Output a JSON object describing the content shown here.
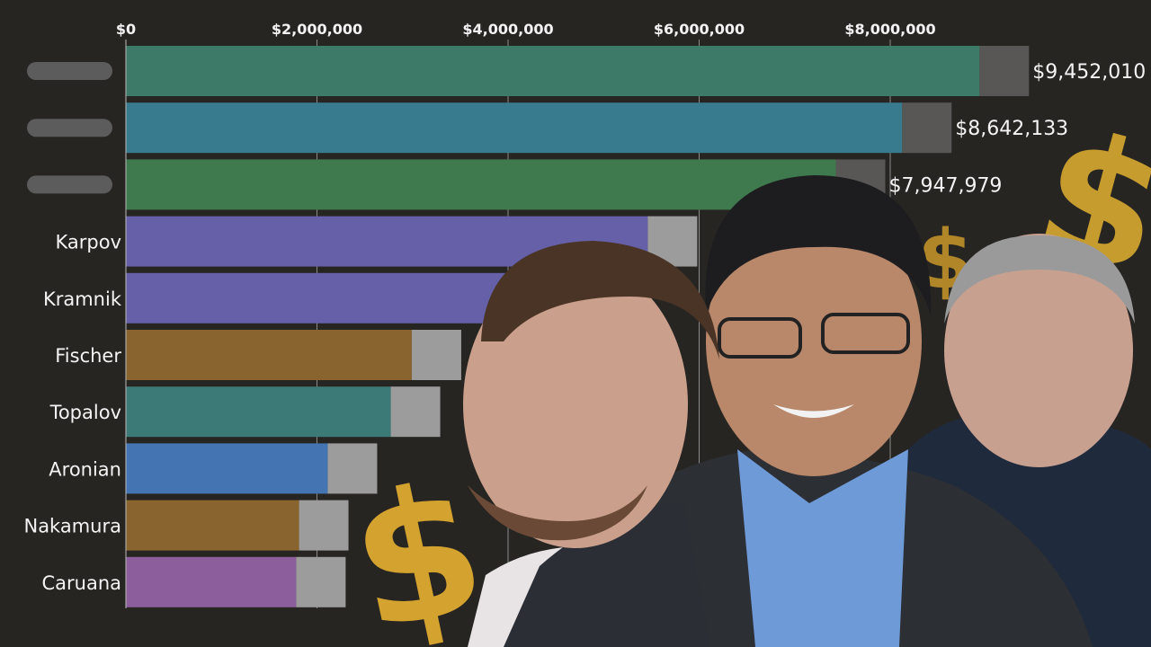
{
  "chart_data": {
    "type": "bar",
    "orientation": "horizontal",
    "title": "",
    "xlabel": "",
    "ylabel": "",
    "xlim": [
      0,
      9500000
    ],
    "x_ticks": [
      "$0",
      "$2,000,000",
      "$4,000,000",
      "$6,000,000",
      "$8,000,000"
    ],
    "x_tick_values": [
      0,
      2000000,
      4000000,
      6000000,
      8000000
    ],
    "grid": true,
    "categories": [
      "",
      "",
      "",
      "Karpov",
      "Kramnik",
      "Fischer",
      "Topalov",
      "Aronian",
      "Nakamura",
      "Caruana"
    ],
    "values": [
      9452010,
      8642133,
      7947979,
      5980000,
      5400000,
      3510000,
      3290000,
      2630000,
      2330000,
      2300000
    ],
    "value_labels": [
      "$9,452,010",
      "$8,642,133",
      "$7,947,979",
      "",
      "",
      "",
      "",
      "",
      "",
      ""
    ],
    "colors": [
      "#3d7a67",
      "#387a8e",
      "#3f7a4e",
      "#6560a8",
      "#6560a8",
      "#89642f",
      "#3c7a78",
      "#4474b2",
      "#89642f",
      "#8c5e9c"
    ],
    "names_blurred": [
      true,
      true,
      true,
      false,
      false,
      false,
      false,
      false,
      false,
      false
    ]
  },
  "decor": {
    "dollar_glyph": "$",
    "gold": "#d9a930"
  }
}
